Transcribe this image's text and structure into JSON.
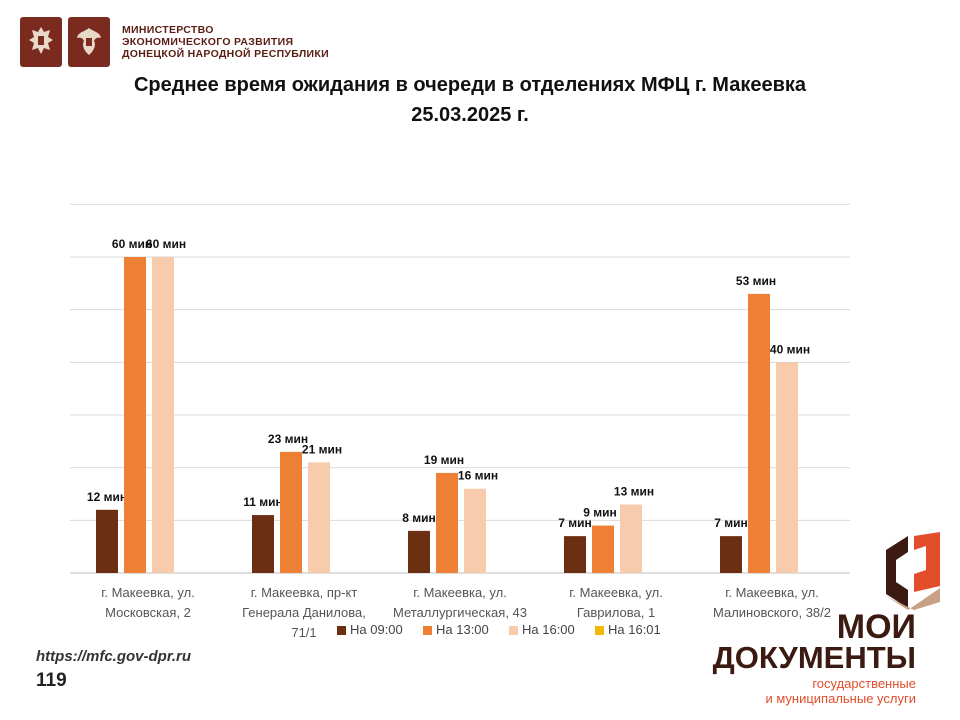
{
  "header": {
    "ministry_line1": "МИНИСТЕРСТВО",
    "ministry_line2": "ЭКОНОМИЧЕСКОГО РАЗВИТИЯ",
    "ministry_line3": "ДОНЕЦКОЙ НАРОДНОЙ РЕСПУБЛИКИ"
  },
  "colors": {
    "emblem_bg": "#7a2a1e",
    "series_0900": "#6b2f12",
    "series_1300": "#ee8036",
    "series_1600": "#f8cbad",
    "series_1601": "#f2b800",
    "brand_dark": "#3b1a12",
    "brand_red": "#e24d2c"
  },
  "chart_data": {
    "type": "bar",
    "title_line1": "Среднее время ожидания в очереди в отделениях МФЦ г. Макеевка",
    "title_line2": "25.03.2025 г.",
    "categories": [
      [
        "г. Макеевка, ул.",
        "Московская, 2"
      ],
      [
        "г. Макеевка, пр-кт",
        "Генерала Данилова,",
        "71/1"
      ],
      [
        "г. Макеевка, ул.",
        "Металлургическая, 43"
      ],
      [
        "г. Макеевка, ул.",
        "Гаврилова, 1"
      ],
      [
        "г. Макеевка, ул.",
        "Малиновского, 38/2"
      ]
    ],
    "series": [
      {
        "name": "На 09:00",
        "values": [
          12,
          11,
          8,
          7,
          7
        ],
        "labels": [
          "12 мин",
          "11 мин",
          "8 мин",
          "7 мин",
          "7 мин"
        ]
      },
      {
        "name": "На 13:00",
        "values": [
          60,
          23,
          19,
          9,
          53
        ],
        "labels": [
          "60 мин",
          "23 мин",
          "19 мин",
          "9 мин",
          "53 мин"
        ]
      },
      {
        "name": "На 16:00",
        "values": [
          60,
          21,
          16,
          13,
          40
        ],
        "labels": [
          "60 мин",
          "21 мин",
          "16 мин",
          "13 мин",
          "40 мин"
        ]
      },
      {
        "name": "На 16:01",
        "values": [
          null,
          null,
          null,
          null,
          null
        ],
        "labels": []
      }
    ],
    "ylim": [
      0,
      60
    ],
    "grid": true,
    "legend_position": "bottom"
  },
  "footer": {
    "url": "https://mfc.gov-dpr.ru",
    "page_number": "119"
  },
  "brand": {
    "line1": "МОИ",
    "line2": "ДОКУМЕНТЫ",
    "sub1": "государственные",
    "sub2": "и муниципальные услуги"
  }
}
